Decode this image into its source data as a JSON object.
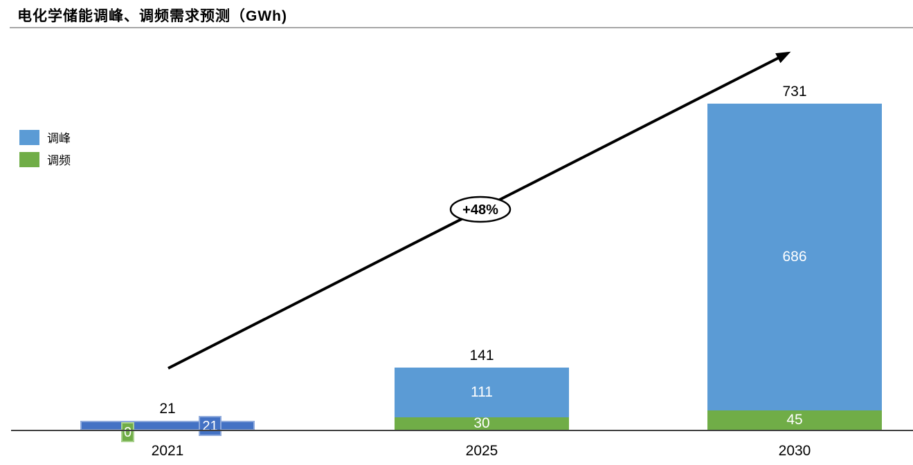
{
  "title": {
    "text": "电化学储能调峰、调频需求预测（GWh)"
  },
  "legend": {
    "items": [
      {
        "label": "调峰",
        "color": "#5B9BD5"
      },
      {
        "label": "调频",
        "color": "#70AD47"
      }
    ]
  },
  "annotation": {
    "growth_label": "+48%"
  },
  "colors": {
    "peak_blue": "#5B9BD5",
    "freq_green": "#70AD47",
    "dark_blue_2021": "#4472C4",
    "dark_blue_border": "#8FAADC",
    "green_border": "#A9D18E",
    "axis_line": "#3F3F3F",
    "title_rule": "#A6A6A6"
  },
  "bars": [
    {
      "category": "2021",
      "total": "21",
      "peak_label": "21",
      "freq_label": "0"
    },
    {
      "category": "2025",
      "total": "141",
      "peak_label": "111",
      "freq_label": "30"
    },
    {
      "category": "2030",
      "total": "731",
      "peak_label": "686",
      "freq_label": "45"
    }
  ],
  "chart_data": {
    "type": "bar",
    "stacked": true,
    "title": "电化学储能调峰、调频需求预测（GWh)",
    "unit": "GWh",
    "categories": [
      "2021",
      "2025",
      "2030"
    ],
    "series": [
      {
        "name": "调频",
        "color": "#70AD47",
        "values": [
          0,
          30,
          45
        ]
      },
      {
        "name": "调峰",
        "color": "#5B9BD5",
        "values": [
          21,
          111,
          686
        ]
      }
    ],
    "totals": [
      21,
      141,
      731
    ],
    "ylim": [
      0,
      760
    ],
    "grid": false,
    "legend_position": "top-left",
    "annotations": [
      {
        "text": "+48%",
        "shape": "ellipse-on-trend-arrow"
      }
    ]
  }
}
